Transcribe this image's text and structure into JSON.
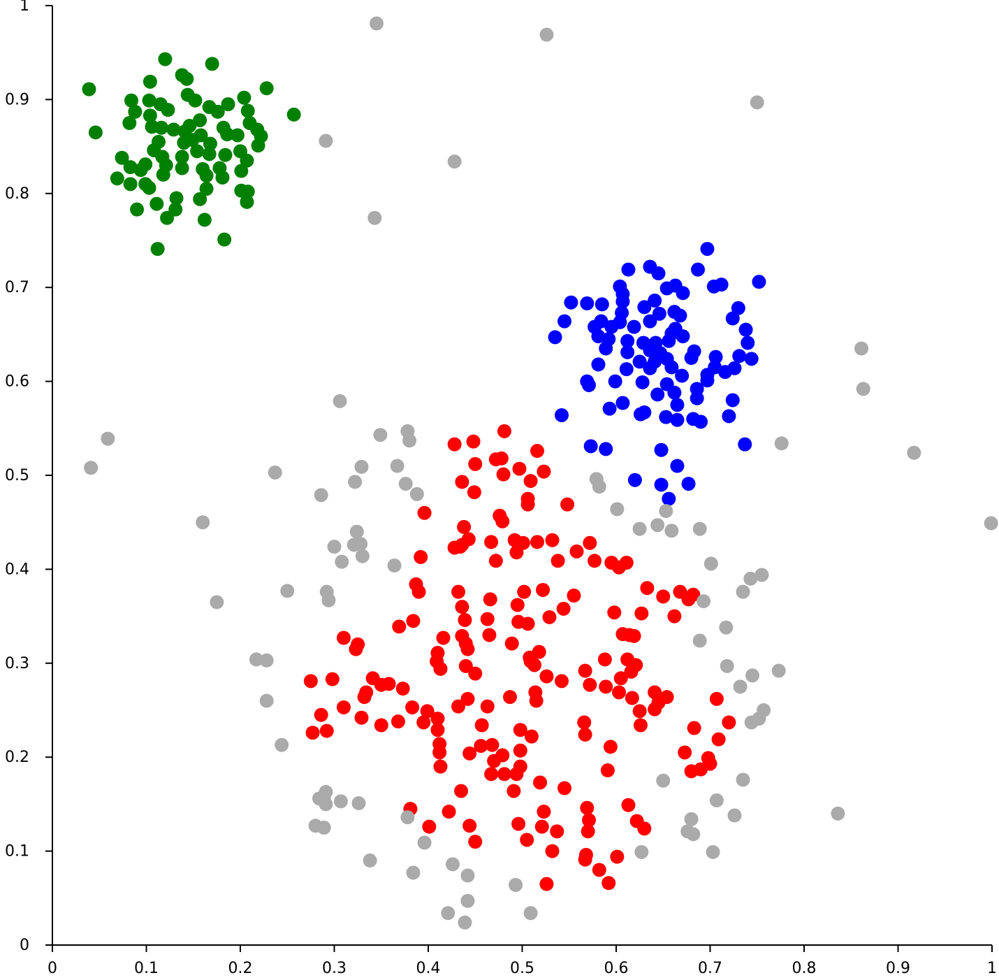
{
  "chart_data": {
    "type": "scatter",
    "xlim": [
      0,
      1
    ],
    "ylim": [
      0,
      1
    ],
    "xticks": [
      0,
      0.1,
      0.2,
      0.3,
      0.4,
      0.5,
      0.6,
      0.7,
      0.8,
      0.9,
      1
    ],
    "yticks": [
      0,
      0.1,
      0.2,
      0.3,
      0.4,
      0.5,
      0.6,
      0.7,
      0.8,
      0.9,
      1
    ],
    "grid": false,
    "series": [
      {
        "color": "#008000",
        "x": [
          0.039,
          0.046,
          0.12,
          0.17,
          0.138,
          0.143,
          0.104,
          0.228,
          0.257,
          0.144,
          0.152,
          0.084,
          0.103,
          0.115,
          0.123,
          0.167,
          0.176,
          0.187,
          0.204,
          0.208,
          0.088,
          0.104,
          0.082,
          0.106,
          0.116,
          0.129,
          0.141,
          0.157,
          0.182,
          0.21,
          0.218,
          0.222,
          0.197,
          0.186,
          0.158,
          0.14,
          0.168,
          0.113,
          0.219,
          0.108,
          0.154,
          0.184,
          0.2,
          0.074,
          0.117,
          0.138,
          0.207,
          0.099,
          0.083,
          0.094,
          0.121,
          0.138,
          0.16,
          0.178,
          0.201,
          0.118,
          0.164,
          0.181,
          0.069,
          0.083,
          0.099,
          0.103,
          0.164,
          0.201,
          0.208,
          0.207,
          0.132,
          0.157,
          0.111,
          0.131,
          0.09,
          0.122,
          0.162,
          0.183,
          0.112,
          0.149,
          0.167,
          0.146
        ],
        "values": [
          0.911,
          0.865,
          0.943,
          0.938,
          0.926,
          0.922,
          0.919,
          0.912,
          0.884,
          0.905,
          0.899,
          0.899,
          0.899,
          0.895,
          0.889,
          0.892,
          0.887,
          0.895,
          0.902,
          0.888,
          0.887,
          0.883,
          0.875,
          0.871,
          0.87,
          0.868,
          0.866,
          0.878,
          0.87,
          0.875,
          0.868,
          0.861,
          0.862,
          0.863,
          0.862,
          0.854,
          0.853,
          0.855,
          0.851,
          0.846,
          0.845,
          0.841,
          0.845,
          0.838,
          0.839,
          0.839,
          0.835,
          0.831,
          0.828,
          0.825,
          0.83,
          0.827,
          0.826,
          0.827,
          0.824,
          0.82,
          0.819,
          0.817,
          0.816,
          0.81,
          0.81,
          0.806,
          0.805,
          0.803,
          0.802,
          0.791,
          0.795,
          0.794,
          0.789,
          0.783,
          0.783,
          0.774,
          0.772,
          0.751,
          0.741,
          0.857,
          0.842,
          0.872
        ]
      },
      {
        "color": "#0000ff",
        "x": [
          0.697,
          0.687,
          0.613,
          0.636,
          0.645,
          0.752,
          0.712,
          0.704,
          0.604,
          0.607,
          0.654,
          0.663,
          0.671,
          0.552,
          0.569,
          0.585,
          0.607,
          0.641,
          0.63,
          0.73,
          0.606,
          0.646,
          0.662,
          0.668,
          0.724,
          0.545,
          0.584,
          0.604,
          0.636,
          0.577,
          0.595,
          0.619,
          0.663,
          0.659,
          0.671,
          0.738,
          0.535,
          0.581,
          0.592,
          0.612,
          0.642,
          0.656,
          0.629,
          0.74,
          0.589,
          0.612,
          0.636,
          0.647,
          0.683,
          0.706,
          0.731,
          0.744,
          0.625,
          0.641,
          0.654,
          0.68,
          0.581,
          0.636,
          0.659,
          0.705,
          0.726,
          0.611,
          0.716,
          0.697,
          0.67,
          0.697,
          0.569,
          0.571,
          0.599,
          0.628,
          0.654,
          0.686,
          0.662,
          0.644,
          0.686,
          0.724,
          0.607,
          0.665,
          0.593,
          0.626,
          0.63,
          0.542,
          0.653,
          0.665,
          0.682,
          0.69,
          0.72,
          0.737,
          0.573,
          0.589,
          0.648,
          0.665,
          0.62,
          0.648,
          0.677,
          0.656
        ],
        "values": [
          0.741,
          0.719,
          0.719,
          0.722,
          0.715,
          0.706,
          0.703,
          0.701,
          0.701,
          0.693,
          0.699,
          0.702,
          0.694,
          0.684,
          0.683,
          0.682,
          0.685,
          0.686,
          0.679,
          0.678,
          0.673,
          0.672,
          0.674,
          0.67,
          0.667,
          0.664,
          0.664,
          0.663,
          0.664,
          0.658,
          0.658,
          0.658,
          0.656,
          0.651,
          0.648,
          0.655,
          0.647,
          0.648,
          0.645,
          0.643,
          0.641,
          0.643,
          0.641,
          0.641,
          0.635,
          0.631,
          0.633,
          0.63,
          0.632,
          0.626,
          0.627,
          0.624,
          0.621,
          0.621,
          0.624,
          0.625,
          0.618,
          0.614,
          0.615,
          0.615,
          0.614,
          0.613,
          0.61,
          0.607,
          0.606,
          0.601,
          0.6,
          0.596,
          0.6,
          0.599,
          0.597,
          0.592,
          0.588,
          0.586,
          0.582,
          0.58,
          0.577,
          0.575,
          0.571,
          0.565,
          0.567,
          0.564,
          0.562,
          0.559,
          0.56,
          0.557,
          0.563,
          0.533,
          0.531,
          0.528,
          0.527,
          0.51,
          0.495,
          0.49,
          0.491,
          0.475
        ]
      },
      {
        "color": "#ff0000",
        "x": [
          0.481,
          0.428,
          0.448,
          0.516,
          0.45,
          0.472,
          0.478,
          0.497,
          0.523,
          0.48,
          0.436,
          0.509,
          0.449,
          0.506,
          0.506,
          0.548,
          0.396,
          0.476,
          0.479,
          0.438,
          0.443,
          0.436,
          0.467,
          0.492,
          0.501,
          0.516,
          0.532,
          0.572,
          0.428,
          0.434,
          0.494,
          0.558,
          0.392,
          0.472,
          0.538,
          0.577,
          0.595,
          0.611,
          0.603,
          0.387,
          0.39,
          0.432,
          0.502,
          0.522,
          0.555,
          0.633,
          0.65,
          0.668,
          0.682,
          0.677,
          0.436,
          0.466,
          0.495,
          0.544,
          0.598,
          0.627,
          0.662,
          0.439,
          0.463,
          0.496,
          0.506,
          0.529,
          0.384,
          0.369,
          0.465,
          0.607,
          0.614,
          0.619,
          0.31,
          0.416,
          0.436,
          0.325,
          0.323,
          0.44,
          0.442,
          0.489,
          0.41,
          0.518,
          0.508,
          0.509,
          0.409,
          0.588,
          0.612,
          0.621,
          0.413,
          0.44,
          0.513,
          0.616,
          0.45,
          0.567,
          0.275,
          0.298,
          0.341,
          0.526,
          0.542,
          0.605,
          0.35,
          0.358,
          0.572,
          0.589,
          0.373,
          0.334,
          0.332,
          0.514,
          0.603,
          0.641,
          0.654,
          0.442,
          0.487,
          0.617,
          0.707,
          0.515,
          0.645,
          0.383,
          0.31,
          0.432,
          0.463,
          0.399,
          0.625,
          0.641,
          0.286,
          0.329,
          0.41,
          0.395,
          0.368,
          0.35,
          0.457,
          0.566,
          0.626,
          0.72,
          0.277,
          0.292,
          0.41,
          0.498,
          0.567,
          0.683,
          0.51,
          0.709,
          0.412,
          0.456,
          0.468,
          0.594,
          0.412,
          0.444,
          0.498,
          0.673,
          0.479,
          0.47,
          0.698,
          0.7,
          0.498,
          0.413,
          0.591,
          0.467,
          0.481,
          0.494,
          0.68,
          0.69,
          0.519,
          0.545,
          0.491,
          0.435,
          0.613,
          0.381,
          0.569,
          0.422,
          0.523,
          0.571,
          0.622,
          0.444,
          0.496,
          0.521,
          0.401,
          0.63,
          0.537,
          0.57,
          0.45,
          0.505,
          0.532,
          0.568,
          0.601,
          0.567,
          0.582,
          0.592,
          0.526
        ],
        "values": [
          0.547,
          0.533,
          0.536,
          0.526,
          0.512,
          0.517,
          0.518,
          0.507,
          0.504,
          0.501,
          0.493,
          0.494,
          0.482,
          0.475,
          0.469,
          0.469,
          0.46,
          0.457,
          0.451,
          0.445,
          0.432,
          0.426,
          0.429,
          0.431,
          0.428,
          0.429,
          0.431,
          0.428,
          0.423,
          0.424,
          0.418,
          0.419,
          0.413,
          0.409,
          0.409,
          0.409,
          0.407,
          0.407,
          0.402,
          0.384,
          0.376,
          0.376,
          0.376,
          0.378,
          0.372,
          0.38,
          0.371,
          0.376,
          0.373,
          0.368,
          0.36,
          0.368,
          0.362,
          0.358,
          0.354,
          0.353,
          0.35,
          0.346,
          0.347,
          0.344,
          0.342,
          0.349,
          0.345,
          0.339,
          0.33,
          0.331,
          0.33,
          0.329,
          0.327,
          0.327,
          0.329,
          0.32,
          0.315,
          0.321,
          0.315,
          0.321,
          0.311,
          0.312,
          0.306,
          0.302,
          0.302,
          0.304,
          0.304,
          0.298,
          0.294,
          0.297,
          0.298,
          0.291,
          0.289,
          0.292,
          0.281,
          0.283,
          0.284,
          0.286,
          0.281,
          0.284,
          0.277,
          0.278,
          0.277,
          0.275,
          0.273,
          0.269,
          0.264,
          0.269,
          0.269,
          0.269,
          0.264,
          0.262,
          0.264,
          0.263,
          0.262,
          0.26,
          0.258,
          0.253,
          0.253,
          0.254,
          0.254,
          0.249,
          0.249,
          0.251,
          0.245,
          0.242,
          0.241,
          0.237,
          0.238,
          0.234,
          0.234,
          0.237,
          0.234,
          0.237,
          0.226,
          0.228,
          0.229,
          0.229,
          0.224,
          0.231,
          0.222,
          0.219,
          0.214,
          0.212,
          0.213,
          0.211,
          0.205,
          0.204,
          0.207,
          0.205,
          0.202,
          0.196,
          0.199,
          0.193,
          0.19,
          0.19,
          0.186,
          0.182,
          0.182,
          0.182,
          0.185,
          0.187,
          0.173,
          0.167,
          0.164,
          0.164,
          0.149,
          0.145,
          0.146,
          0.142,
          0.142,
          0.133,
          0.132,
          0.127,
          0.129,
          0.126,
          0.126,
          0.124,
          0.121,
          0.121,
          0.11,
          0.112,
          0.1,
          0.096,
          0.094,
          0.091,
          0.08,
          0.066,
          0.065
        ]
      },
      {
        "color": "#aaaaaa",
        "x": [
          0.345,
          0.526,
          0.75,
          0.291,
          0.428,
          0.343,
          0.861,
          0.863,
          0.306,
          0.059,
          0.041,
          0.349,
          0.378,
          0.38,
          0.776,
          0.917,
          0.329,
          0.367,
          0.237,
          0.322,
          0.376,
          0.388,
          0.286,
          0.579,
          0.582,
          0.601,
          0.653,
          0.16,
          0.625,
          0.644,
          0.659,
          0.689,
          0.999,
          0.324,
          0.3,
          0.321,
          0.328,
          0.33,
          0.308,
          0.364,
          0.701,
          0.755,
          0.743,
          0.735,
          0.25,
          0.292,
          0.294,
          0.175,
          0.693,
          0.717,
          0.689,
          0.217,
          0.228,
          0.718,
          0.745,
          0.773,
          0.732,
          0.228,
          0.757,
          0.752,
          0.744,
          0.244,
          0.65,
          0.735,
          0.291,
          0.289,
          0.284,
          0.291,
          0.307,
          0.326,
          0.707,
          0.726,
          0.836,
          0.378,
          0.68,
          0.28,
          0.289,
          0.676,
          0.682,
          0.396,
          0.627,
          0.703,
          0.338,
          0.426,
          0.384,
          0.442,
          0.493,
          0.442,
          0.421,
          0.509,
          0.439
        ],
        "values": [
          0.981,
          0.969,
          0.897,
          0.856,
          0.834,
          0.774,
          0.635,
          0.592,
          0.579,
          0.539,
          0.508,
          0.543,
          0.547,
          0.537,
          0.534,
          0.524,
          0.509,
          0.51,
          0.503,
          0.493,
          0.491,
          0.48,
          0.479,
          0.496,
          0.488,
          0.464,
          0.462,
          0.45,
          0.443,
          0.447,
          0.441,
          0.443,
          0.449,
          0.44,
          0.424,
          0.426,
          0.427,
          0.414,
          0.408,
          0.404,
          0.406,
          0.394,
          0.39,
          0.376,
          0.377,
          0.376,
          0.367,
          0.365,
          0.366,
          0.338,
          0.324,
          0.304,
          0.303,
          0.297,
          0.287,
          0.292,
          0.275,
          0.26,
          0.25,
          0.241,
          0.237,
          0.213,
          0.175,
          0.176,
          0.163,
          0.157,
          0.156,
          0.15,
          0.153,
          0.151,
          0.154,
          0.138,
          0.14,
          0.136,
          0.134,
          0.127,
          0.125,
          0.121,
          0.118,
          0.109,
          0.099,
          0.099,
          0.09,
          0.086,
          0.077,
          0.074,
          0.064,
          0.047,
          0.034,
          0.034,
          0.024
        ]
      }
    ]
  }
}
